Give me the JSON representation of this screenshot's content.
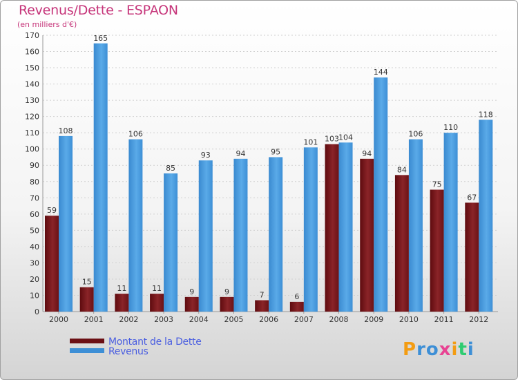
{
  "chart_data": {
    "type": "bar",
    "title": "Revenus/Dette - ESPAON",
    "subtitle": "(en milliers d'€)",
    "categories": [
      "2000",
      "2001",
      "2002",
      "2003",
      "2004",
      "2005",
      "2006",
      "2007",
      "2008",
      "2009",
      "2010",
      "2011",
      "2012"
    ],
    "series": [
      {
        "name": "Montant de la Dette",
        "color": "#7a1a1e",
        "values": [
          59,
          15,
          11,
          11,
          9,
          9,
          7,
          6,
          103,
          94,
          84,
          75,
          67
        ]
      },
      {
        "name": "Revenus",
        "color": "#3d8fd6",
        "values": [
          108,
          165,
          106,
          85,
          93,
          94,
          95,
          101,
          104,
          144,
          106,
          110,
          118
        ]
      }
    ],
    "ylim": [
      0,
      170
    ],
    "yticks": [
      0,
      10,
      20,
      30,
      40,
      50,
      60,
      70,
      80,
      90,
      100,
      110,
      120,
      130,
      140,
      150,
      160,
      170
    ],
    "grid": true,
    "legend_position": "bottom-left",
    "xlabel": "",
    "ylabel": ""
  },
  "logo": {
    "letters": [
      "P",
      "r",
      "o",
      "x",
      "i",
      "t",
      "i"
    ],
    "colors": [
      "#f39c12",
      "#3d8fd6",
      "#3d8fd6",
      "#e84393",
      "#f39c12",
      "#2ecc71",
      "#3d8fd6"
    ]
  }
}
